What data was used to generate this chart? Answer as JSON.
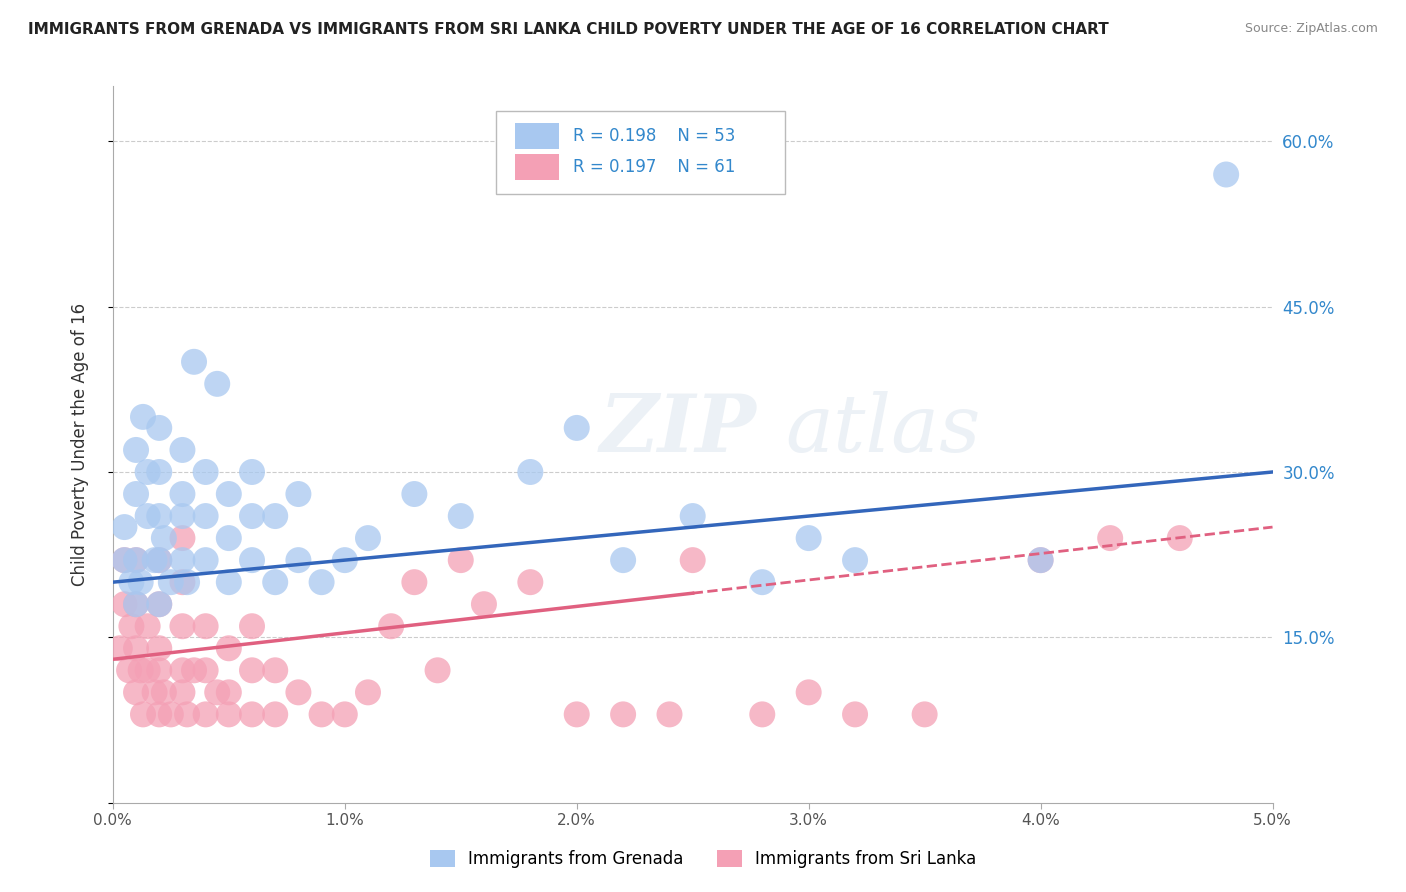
{
  "title": "IMMIGRANTS FROM GRENADA VS IMMIGRANTS FROM SRI LANKA CHILD POVERTY UNDER THE AGE OF 16 CORRELATION CHART",
  "source": "Source: ZipAtlas.com",
  "ylabel": "Child Poverty Under the Age of 16",
  "xlim": [
    0.0,
    0.05
  ],
  "ylim": [
    0.0,
    0.65
  ],
  "xticks": [
    0.0,
    0.01,
    0.02,
    0.03,
    0.04,
    0.05
  ],
  "xticklabels": [
    "0.0%",
    "1.0%",
    "2.0%",
    "3.0%",
    "4.0%",
    "5.0%"
  ],
  "yticks": [
    0.0,
    0.15,
    0.3,
    0.45,
    0.6
  ],
  "yticklabels": [
    "",
    "15.0%",
    "30.0%",
    "45.0%",
    "60.0%"
  ],
  "grid_color": "#cccccc",
  "background_color": "#ffffff",
  "grenada_color": "#a8c8f0",
  "srilanka_color": "#f4a0b5",
  "grenada_line_color": "#3366bb",
  "srilanka_line_color": "#e06080",
  "R_grenada": 0.198,
  "N_grenada": 53,
  "R_srilanka": 0.197,
  "N_srilanka": 61,
  "legend_color": "#3388cc",
  "watermark": "ZIPatlas",
  "grenada_scatter_x": [
    0.0005,
    0.0005,
    0.0008,
    0.001,
    0.001,
    0.001,
    0.001,
    0.0012,
    0.0013,
    0.0015,
    0.0015,
    0.0018,
    0.002,
    0.002,
    0.002,
    0.002,
    0.002,
    0.0022,
    0.0025,
    0.003,
    0.003,
    0.003,
    0.003,
    0.0032,
    0.0035,
    0.004,
    0.004,
    0.004,
    0.0045,
    0.005,
    0.005,
    0.005,
    0.006,
    0.006,
    0.006,
    0.007,
    0.007,
    0.008,
    0.008,
    0.009,
    0.01,
    0.011,
    0.013,
    0.015,
    0.018,
    0.02,
    0.022,
    0.025,
    0.028,
    0.03,
    0.032,
    0.04,
    0.048
  ],
  "grenada_scatter_y": [
    0.22,
    0.25,
    0.2,
    0.18,
    0.22,
    0.28,
    0.32,
    0.2,
    0.35,
    0.26,
    0.3,
    0.22,
    0.18,
    0.22,
    0.26,
    0.3,
    0.34,
    0.24,
    0.2,
    0.22,
    0.26,
    0.28,
    0.32,
    0.2,
    0.4,
    0.22,
    0.26,
    0.3,
    0.38,
    0.2,
    0.24,
    0.28,
    0.22,
    0.26,
    0.3,
    0.2,
    0.26,
    0.22,
    0.28,
    0.2,
    0.22,
    0.24,
    0.28,
    0.26,
    0.3,
    0.34,
    0.22,
    0.26,
    0.2,
    0.24,
    0.22,
    0.22,
    0.57
  ],
  "srilanka_scatter_x": [
    0.0003,
    0.0005,
    0.0005,
    0.0007,
    0.0008,
    0.001,
    0.001,
    0.001,
    0.001,
    0.0012,
    0.0013,
    0.0015,
    0.0015,
    0.0018,
    0.002,
    0.002,
    0.002,
    0.002,
    0.002,
    0.0022,
    0.0025,
    0.003,
    0.003,
    0.003,
    0.003,
    0.003,
    0.0032,
    0.0035,
    0.004,
    0.004,
    0.004,
    0.0045,
    0.005,
    0.005,
    0.005,
    0.006,
    0.006,
    0.006,
    0.007,
    0.007,
    0.008,
    0.009,
    0.01,
    0.011,
    0.012,
    0.013,
    0.014,
    0.015,
    0.016,
    0.018,
    0.02,
    0.022,
    0.024,
    0.025,
    0.028,
    0.03,
    0.032,
    0.035,
    0.04,
    0.043,
    0.046
  ],
  "srilanka_scatter_y": [
    0.14,
    0.18,
    0.22,
    0.12,
    0.16,
    0.1,
    0.14,
    0.18,
    0.22,
    0.12,
    0.08,
    0.12,
    0.16,
    0.1,
    0.08,
    0.12,
    0.14,
    0.18,
    0.22,
    0.1,
    0.08,
    0.1,
    0.12,
    0.16,
    0.2,
    0.24,
    0.08,
    0.12,
    0.08,
    0.12,
    0.16,
    0.1,
    0.08,
    0.1,
    0.14,
    0.08,
    0.12,
    0.16,
    0.08,
    0.12,
    0.1,
    0.08,
    0.08,
    0.1,
    0.16,
    0.2,
    0.12,
    0.22,
    0.18,
    0.2,
    0.08,
    0.08,
    0.08,
    0.22,
    0.08,
    0.1,
    0.08,
    0.08,
    0.22,
    0.24,
    0.24
  ]
}
